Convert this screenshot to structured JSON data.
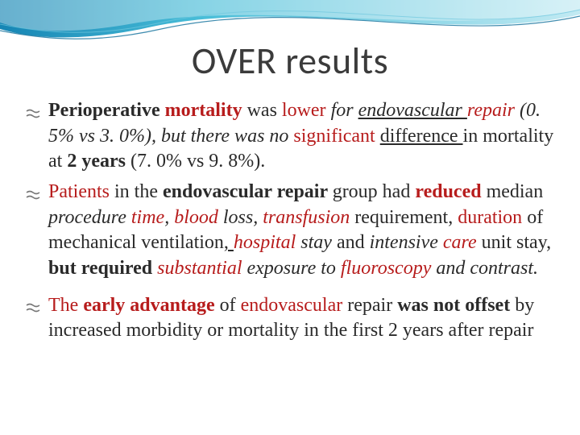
{
  "slide": {
    "title": "OVER results",
    "title_fontsize": 46,
    "body_fontsize": 24,
    "line_height": 1.32,
    "text_color": "#2a2a2a",
    "red_color": "#b71c1c",
    "background_color": "#ffffff",
    "wave_colors": {
      "gradient_start": "#0a7fb0",
      "gradient_mid": "#3fbad6",
      "gradient_end": "#bfe9f2",
      "outline": "#0f6f9b"
    },
    "bullets": [
      {
        "segments": [
          {
            "text": "Perioperative ",
            "bold": true,
            "italic": false,
            "red": false,
            "underline": false
          },
          {
            "text": "mortality ",
            "bold": true,
            "italic": false,
            "red": true,
            "underline": false
          },
          {
            "text": "was ",
            "bold": false,
            "italic": false,
            "red": false,
            "underline": false
          },
          {
            "text": "lower ",
            "bold": false,
            "italic": false,
            "red": true,
            "underline": false
          },
          {
            "text": "for ",
            "bold": false,
            "italic": true,
            "red": false,
            "underline": false
          },
          {
            "text": "endovascular ",
            "bold": false,
            "italic": true,
            "red": false,
            "underline": true
          },
          {
            "text": "repair ",
            "bold": false,
            "italic": true,
            "red": true,
            "underline": false
          },
          {
            "text": "(0. 5% vs 3. 0%), ",
            "bold": false,
            "italic": true,
            "red": false,
            "underline": false
          },
          {
            "text": "but there was no ",
            "bold": false,
            "italic": true,
            "red": false,
            "underline": false
          },
          {
            "text": "significant ",
            "bold": false,
            "italic": false,
            "red": true,
            "underline": false
          },
          {
            "text": "difference ",
            "bold": false,
            "italic": false,
            "red": false,
            "underline": true
          },
          {
            "text": "in mortality at ",
            "bold": false,
            "italic": false,
            "red": false,
            "underline": false
          },
          {
            "text": "2 years ",
            "bold": true,
            "italic": false,
            "red": false,
            "underline": false
          },
          {
            "text": "(7. 0% vs 9. 8%).",
            "bold": false,
            "italic": false,
            "red": false,
            "underline": false
          }
        ]
      },
      {
        "segments": [
          {
            "text": "Patients ",
            "bold": false,
            "italic": false,
            "red": true,
            "underline": false
          },
          {
            "text": "in the ",
            "bold": false,
            "italic": false,
            "red": false,
            "underline": false
          },
          {
            "text": "endovascular repair ",
            "bold": true,
            "italic": false,
            "red": false,
            "underline": false
          },
          {
            "text": "group had ",
            "bold": false,
            "italic": false,
            "red": false,
            "underline": false
          },
          {
            "text": "reduced ",
            "bold": true,
            "italic": false,
            "red": true,
            "underline": false
          },
          {
            "text": "median ",
            "bold": false,
            "italic": false,
            "red": false,
            "underline": false
          },
          {
            "text": "procedure ",
            "bold": false,
            "italic": true,
            "red": false,
            "underline": false
          },
          {
            "text": "time",
            "bold": false,
            "italic": true,
            "red": true,
            "underline": false
          },
          {
            "text": ", ",
            "bold": false,
            "italic": true,
            "red": false,
            "underline": false
          },
          {
            "text": "blood ",
            "bold": false,
            "italic": true,
            "red": true,
            "underline": false
          },
          {
            "text": "loss, ",
            "bold": false,
            "italic": true,
            "red": false,
            "underline": false
          },
          {
            "text": "transfusion ",
            "bold": false,
            "italic": true,
            "red": true,
            "underline": false
          },
          {
            "text": "requirement, ",
            "bold": false,
            "italic": false,
            "red": false,
            "underline": false
          },
          {
            "text": "duration ",
            "bold": false,
            "italic": false,
            "red": true,
            "underline": false
          },
          {
            "text": "of mechanical ventilation",
            "bold": false,
            "italic": false,
            "red": false,
            "underline": false
          },
          {
            "text": ", ",
            "bold": false,
            "italic": false,
            "red": false,
            "underline": true
          },
          {
            "text": "hospital ",
            "bold": false,
            "italic": true,
            "red": true,
            "underline": false
          },
          {
            "text": "stay ",
            "bold": false,
            "italic": true,
            "red": false,
            "underline": false
          },
          {
            "text": "and ",
            "bold": false,
            "italic": false,
            "red": false,
            "underline": false
          },
          {
            "text": "intensive ",
            "bold": false,
            "italic": true,
            "red": false,
            "underline": false
          },
          {
            "text": "care ",
            "bold": false,
            "italic": true,
            "red": true,
            "underline": false
          },
          {
            "text": "unit stay, ",
            "bold": false,
            "italic": false,
            "red": false,
            "underline": false
          },
          {
            "text": "but required ",
            "bold": true,
            "italic": false,
            "red": false,
            "underline": false
          },
          {
            "text": "substantial ",
            "bold": false,
            "italic": true,
            "red": true,
            "underline": false
          },
          {
            "text": "exposure to ",
            "bold": false,
            "italic": true,
            "red": false,
            "underline": false
          },
          {
            "text": "fluoroscopy ",
            "bold": false,
            "italic": true,
            "red": true,
            "underline": false
          },
          {
            "text": "and contrast.",
            "bold": false,
            "italic": true,
            "red": false,
            "underline": false
          }
        ]
      },
      {
        "segments": [
          {
            "text": "The ",
            "bold": false,
            "italic": false,
            "red": true,
            "underline": false
          },
          {
            "text": "early advantage ",
            "bold": true,
            "italic": false,
            "red": true,
            "underline": false
          },
          {
            "text": "of ",
            "bold": false,
            "italic": false,
            "red": false,
            "underline": false
          },
          {
            "text": "endovascular ",
            "bold": false,
            "italic": false,
            "red": true,
            "underline": false
          },
          {
            "text": "repair ",
            "bold": false,
            "italic": false,
            "red": false,
            "underline": false
          },
          {
            "text": "was not offset ",
            "bold": true,
            "italic": false,
            "red": false,
            "underline": false
          },
          {
            "text": "by increased morbidity or mortality in the first 2 years after repair",
            "bold": false,
            "italic": false,
            "red": false,
            "underline": false
          }
        ]
      }
    ]
  }
}
